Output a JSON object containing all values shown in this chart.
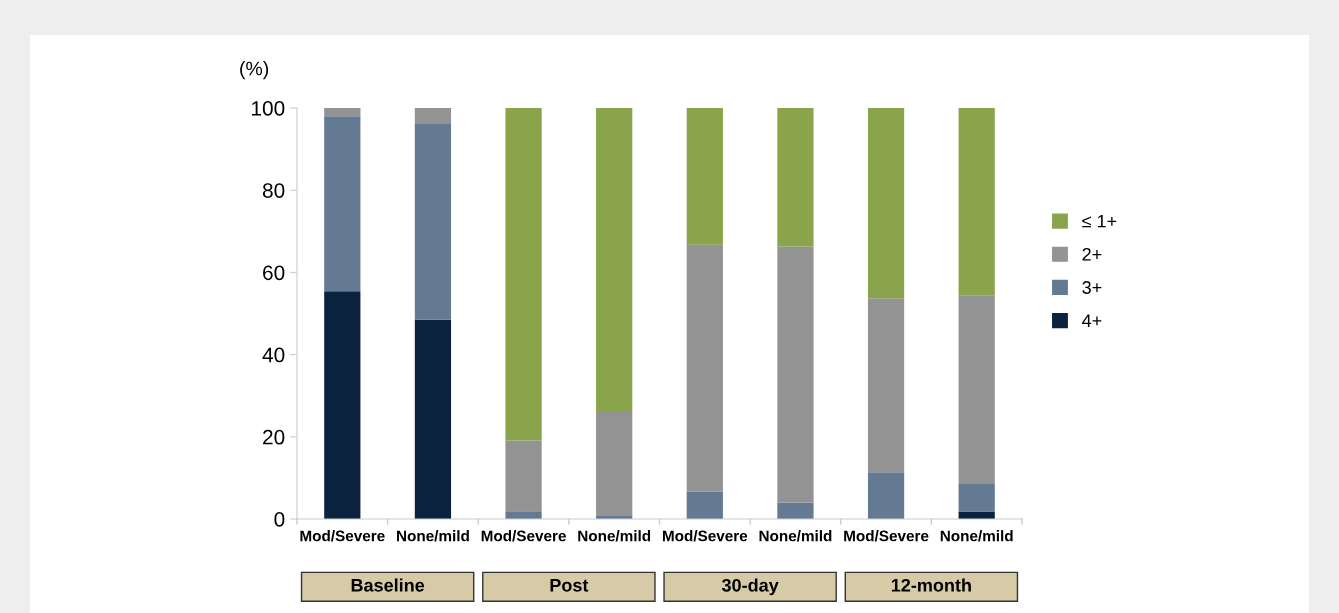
{
  "chart_data": {
    "type": "bar",
    "stacked": true,
    "ylabel": "(%)",
    "categories": [
      "Mod/Severe",
      "None/mild",
      "Mod/Severe",
      "None/mild",
      "Mod/Severe",
      "None/mild",
      "Mod/Severe",
      "None/mild"
    ],
    "series": [
      {
        "name": "4+",
        "color": "#0c2340",
        "values": [
          55.4,
          48.5,
          0,
          0,
          0,
          0,
          0,
          1.8
        ]
      },
      {
        "name": "3+",
        "color": "#647a93",
        "values": [
          42.6,
          47.6,
          1.9,
          0.9,
          6.7,
          4.0,
          11.4,
          6.7
        ]
      },
      {
        "name": "2+",
        "color": "#939393",
        "values": [
          2.0,
          3.9,
          17.2,
          25.4,
          60.0,
          62.3,
          42.3,
          45.8
        ]
      },
      {
        "name": "≤ 1+",
        "color": "#8aa44c",
        "values": [
          0,
          0,
          80.9,
          73.7,
          33.3,
          33.7,
          46.3,
          45.7
        ]
      }
    ],
    "annotations": [
      "Baseline",
      "Post",
      "30-day",
      "12-month"
    ],
    "ylim": [
      0,
      100
    ],
    "yticks": [
      0,
      20,
      40,
      60,
      80,
      100
    ],
    "grid": false,
    "legend": "right"
  }
}
